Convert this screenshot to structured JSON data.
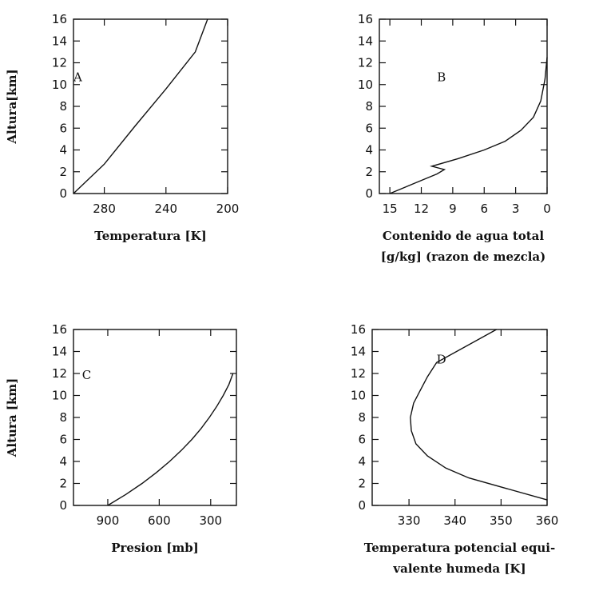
{
  "chart_data": [
    {
      "type": "line",
      "panel_label": "A",
      "ylabel": "Altura[km]",
      "xlabel_lines": [
        "Temperatura [K]"
      ],
      "xlim": [
        300,
        200
      ],
      "ylim": [
        0,
        16
      ],
      "xticks": [
        280,
        240,
        200
      ],
      "yticks": [
        0,
        2,
        4,
        6,
        8,
        10,
        12,
        14,
        16
      ],
      "series": [
        {
          "x": [
            300,
            280,
            260,
            240,
            221,
            213
          ],
          "y": [
            0,
            2.7,
            6.2,
            9.6,
            13,
            16
          ]
        }
      ]
    },
    {
      "type": "line",
      "panel_label": "B",
      "ylabel": "",
      "xlabel_lines": [
        "Contenido de agua total",
        "[g/kg] (razon de mezcla)"
      ],
      "xlim": [
        16,
        0
      ],
      "ylim": [
        0,
        16
      ],
      "xticks": [
        15,
        12,
        9,
        6,
        3,
        0
      ],
      "yticks": [
        0,
        2,
        4,
        6,
        8,
        10,
        12,
        14,
        16
      ],
      "series": [
        {
          "x": [
            15,
            12.5,
            10.5,
            9.8,
            11,
            8.5,
            6,
            4,
            2.5,
            1.3,
            0.6,
            0.2,
            0
          ],
          "y": [
            0,
            1.0,
            1.8,
            2.2,
            2.5,
            3.2,
            4.0,
            4.8,
            5.8,
            7.0,
            8.5,
            10.5,
            12.5
          ]
        }
      ]
    },
    {
      "type": "line",
      "panel_label": "C",
      "ylabel": "Altura [km]",
      "xlabel_lines": [
        "Presion [mb]"
      ],
      "xlim": [
        1100,
        150
      ],
      "ylim": [
        0,
        16
      ],
      "xticks": [
        900,
        600,
        300
      ],
      "yticks": [
        0,
        2,
        4,
        6,
        8,
        10,
        12,
        14,
        16
      ],
      "series": [
        {
          "x": [
            900,
            795,
            700,
            616,
            540,
            472,
            410,
            356,
            308,
            265,
            227,
            194,
            170
          ],
          "y": [
            0,
            1,
            2,
            3,
            4,
            5,
            6,
            7,
            8,
            9,
            10,
            11,
            12
          ]
        }
      ]
    },
    {
      "type": "line",
      "panel_label": "D",
      "ylabel": "",
      "xlabel_lines": [
        "Temperatura potencial equi-",
        "valente humeda [K]"
      ],
      "xlim": [
        322,
        360
      ],
      "ylim": [
        0,
        16
      ],
      "xticks": [
        330,
        340,
        350,
        360
      ],
      "yticks": [
        0,
        2,
        4,
        6,
        8,
        10,
        12,
        14,
        16
      ],
      "series": [
        {
          "x": [
            360,
            343,
            338,
            334,
            331.5,
            330.5,
            330.3,
            331,
            332.5,
            334,
            336,
            349
          ],
          "y": [
            0.5,
            2.5,
            3.4,
            4.5,
            5.6,
            6.8,
            8,
            9.3,
            10.5,
            11.7,
            13,
            16
          ]
        }
      ]
    }
  ]
}
